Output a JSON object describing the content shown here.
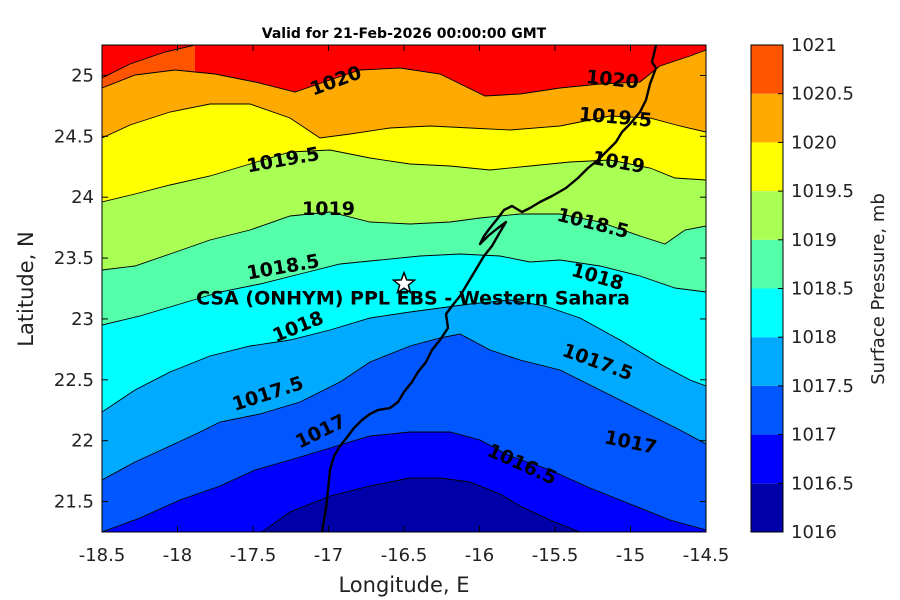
{
  "chart_data": {
    "type": "filled-contour-map",
    "title": "Valid for 21-Feb-2026 00:00:00 GMT",
    "xlabel": "Longitude, E",
    "ylabel": "Latitude, N",
    "xlim": [
      -18.5,
      -14.5
    ],
    "ylim": [
      21.25,
      25.25
    ],
    "x_ticks": [
      "-18.5",
      "-18",
      "-17.5",
      "-17",
      "-16.5",
      "-16",
      "-15.5",
      "-15",
      "-14.5"
    ],
    "y_ticks": [
      "21.5",
      "22",
      "22.5",
      "23",
      "23.5",
      "24",
      "24.5",
      "25"
    ],
    "colorbar": {
      "label": "Surface Pressure, mb",
      "ticks": [
        "1016",
        "1016.5",
        "1017",
        "1017.5",
        "1018",
        "1018.5",
        "1019",
        "1019.5",
        "1020",
        "1020.5",
        "1021"
      ],
      "colors": [
        "#0000a8",
        "#0000ff",
        "#0057ff",
        "#00aaff",
        "#00ffff",
        "#55ffaa",
        "#aaff55",
        "#ffff00",
        "#ffaa00",
        "#ff5500",
        "#ff0000"
      ]
    },
    "contour_labels": [
      {
        "text": "1020",
        "lon": -16.95,
        "lat": 24.95
      },
      {
        "text": "1020",
        "lon": -15.12,
        "lat": 24.96
      },
      {
        "text": "1019.5",
        "lon": -17.3,
        "lat": 24.3
      },
      {
        "text": "1019.5",
        "lon": -15.1,
        "lat": 24.65
      },
      {
        "text": "1019",
        "lon": -17.0,
        "lat": 23.9
      },
      {
        "text": "1019",
        "lon": -15.08,
        "lat": 24.28
      },
      {
        "text": "1018.5",
        "lon": -17.3,
        "lat": 23.42
      },
      {
        "text": "1018.5",
        "lon": -15.25,
        "lat": 23.78
      },
      {
        "text": "1018",
        "lon": -17.2,
        "lat": 22.93
      },
      {
        "text": "1018",
        "lon": -15.22,
        "lat": 23.34
      },
      {
        "text": "1017.5",
        "lon": -17.4,
        "lat": 22.38
      },
      {
        "text": "1017.5",
        "lon": -15.22,
        "lat": 22.64
      },
      {
        "text": "1017",
        "lon": -17.05,
        "lat": 22.07
      },
      {
        "text": "1017",
        "lon": -15.0,
        "lat": 21.98
      },
      {
        "text": "1016.5",
        "lon": -15.72,
        "lat": 21.8
      }
    ],
    "site": {
      "lon": -16.5,
      "lat": 23.29,
      "label": "CSA (ONHYM) PPL EBS  - Western Sahara"
    }
  }
}
